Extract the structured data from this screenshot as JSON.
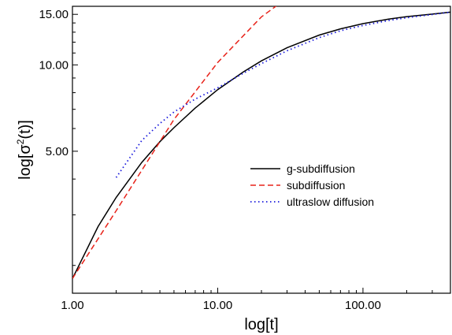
{
  "chart_data": {
    "type": "line",
    "xlabel": "log[t]",
    "ylabel_main": "log[σ",
    "ylabel_sup": "2",
    "ylabel_tail": "(t)]",
    "xscale": "log",
    "yscale": "log",
    "xlim": [
      1,
      400
    ],
    "ylim": [
      1.6,
      16
    ],
    "xticks": [
      {
        "value": 1,
        "label": "1.00"
      },
      {
        "value": 10,
        "label": "10.00"
      },
      {
        "value": 100,
        "label": "100.00"
      }
    ],
    "yticks": [
      {
        "value": 5,
        "label": "5.00"
      },
      {
        "value": 10,
        "label": "10.00"
      },
      {
        "value": 15,
        "label": "15.00"
      }
    ],
    "grid": false,
    "legend_position": "center-right",
    "series": [
      {
        "name": "g-subdiffusion",
        "style": "solid",
        "color": "#000000",
        "x": [
          1,
          1.5,
          2,
          3,
          4,
          5,
          7,
          10,
          15,
          20,
          30,
          50,
          70,
          100,
          150,
          200,
          300,
          400
        ],
        "y": [
          1.8,
          2.73,
          3.45,
          4.57,
          5.4,
          6.04,
          7.07,
          8.2,
          9.45,
          10.33,
          11.47,
          12.7,
          13.35,
          13.92,
          14.44,
          14.73,
          15.03,
          15.27
        ]
      },
      {
        "name": "subdiffusion",
        "style": "dashed",
        "color": "#e8231a",
        "x": [
          1,
          2,
          5,
          10,
          20,
          26
        ],
        "y": [
          1.8,
          3.1,
          6.45,
          10.2,
          14.7,
          16.2
        ]
      },
      {
        "name": "ultraslow diffusion",
        "style": "dotted",
        "color": "#1a1adc",
        "x": [
          2,
          3,
          4,
          5,
          7,
          10,
          15,
          20,
          30,
          50,
          70,
          100,
          150,
          200,
          300,
          400
        ],
        "y": [
          4.05,
          5.45,
          6.25,
          6.85,
          7.6,
          8.32,
          9.35,
          10.1,
          11.2,
          12.45,
          13.15,
          13.72,
          14.28,
          14.6,
          14.98,
          15.27
        ]
      }
    ]
  }
}
